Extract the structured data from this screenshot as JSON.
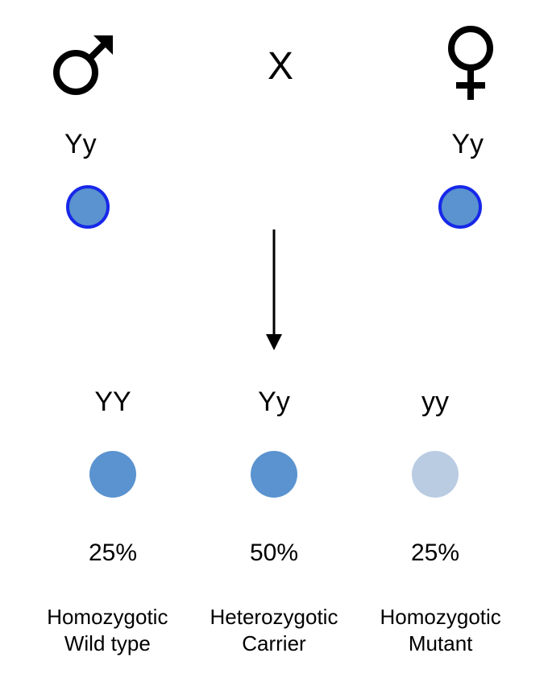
{
  "diagram": {
    "type": "genetic-cross",
    "background_color": "#ffffff",
    "text_color": "#000000",
    "font_family": "Verdana",
    "cross_symbol": "X",
    "cross_fontsize": 48,
    "genotype_fontsize": 34,
    "percent_fontsize": 30,
    "description_fontsize": 26,
    "parents": {
      "male": {
        "symbol": "male",
        "symbol_color": "#000000",
        "symbol_size": 72,
        "genotype": "Yy",
        "circle": {
          "diameter": 54,
          "fill": "#5a93cf",
          "stroke": "#1728e9",
          "stroke_width": 4
        }
      },
      "female": {
        "symbol": "female",
        "symbol_color": "#000000",
        "symbol_size": 72,
        "genotype": "Yy",
        "circle": {
          "diameter": 54,
          "fill": "#5a93cf",
          "stroke": "#1728e9",
          "stroke_width": 4
        }
      }
    },
    "arrow": {
      "length": 140,
      "stroke": "#000000",
      "stroke_width": 3
    },
    "offspring": [
      {
        "genotype": "YY",
        "circle": {
          "diameter": 58,
          "fill": "#5a93cf",
          "stroke": "none",
          "stroke_width": 0
        },
        "percent": "25%",
        "description_line1": "Homozygotic",
        "description_line2": "Wild type"
      },
      {
        "genotype": "Yy",
        "circle": {
          "diameter": 58,
          "fill": "#5a93cf",
          "stroke": "none",
          "stroke_width": 0
        },
        "percent": "50%",
        "description_line1": "Heterozygotic",
        "description_line2": "Carrier"
      },
      {
        "genotype": "yy",
        "circle": {
          "diameter": 58,
          "fill": "#bacce2",
          "stroke": "none",
          "stroke_width": 0
        },
        "percent": "25%",
        "description_line1": "Homozygotic",
        "description_line2": "Mutant"
      }
    ]
  }
}
